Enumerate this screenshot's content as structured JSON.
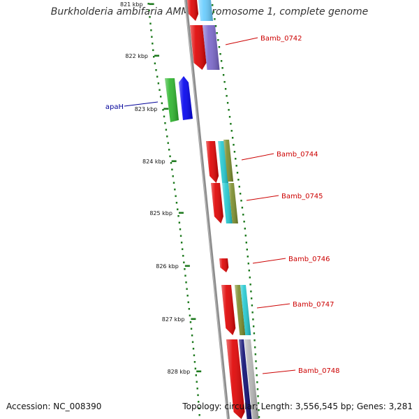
{
  "title": "Burkholderia ambifaria AMMD chromosome 1, complete genome",
  "footer": {
    "accession": "Accession: NC_008390",
    "summary": "Topology: circular; Length: 3,556,545 bp; Genes: 3,281"
  },
  "colors": {
    "backbone": "#8c8c8c",
    "ruler_dots": "#1e7a1e",
    "cds_forward": "#e00000",
    "cds_reverse": "#0000ee",
    "cds_forward_label": "#cc0000",
    "cds_reverse_label": "#000099",
    "track_cyan": "#22c8d0",
    "track_purple": "#7a66cc",
    "track_green": "#2bb52b",
    "track_olive": "#7a8c2a",
    "track_navy": "#0a0a70",
    "track_grey": "#b4b4b4",
    "track_lightblue": "#66ccff"
  },
  "ruler": [
    {
      "label": "821 kbp"
    },
    {
      "label": "822 kbp"
    },
    {
      "label": "823 kbp"
    },
    {
      "label": "824 kbp"
    },
    {
      "label": "825 kbp"
    },
    {
      "label": "826 kbp"
    },
    {
      "label": "827 kbp"
    },
    {
      "label": "828 kbp"
    }
  ],
  "genes": [
    {
      "label": "Bamb_0742",
      "strand": "forward"
    },
    {
      "label": "apaH",
      "strand": "reverse"
    },
    {
      "label": "Bamb_0744",
      "strand": "forward"
    },
    {
      "label": "Bamb_0745",
      "strand": "forward"
    },
    {
      "label": "Bamb_0746",
      "strand": "forward"
    },
    {
      "label": "Bamb_0747",
      "strand": "forward"
    },
    {
      "label": "Bamb_0748",
      "strand": "forward"
    }
  ]
}
